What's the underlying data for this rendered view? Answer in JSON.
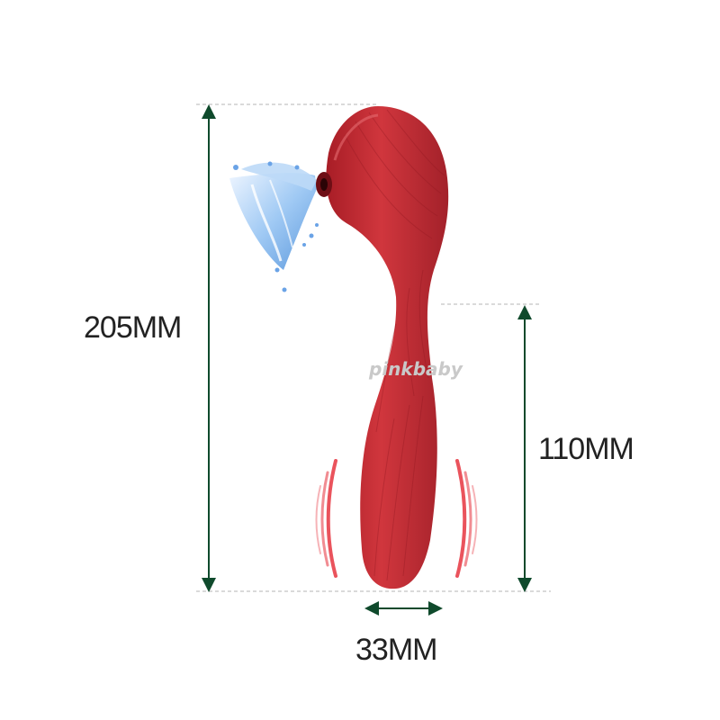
{
  "dimensions": {
    "total_length": "205MM",
    "insertable_length": "110MM",
    "diameter": "33MM"
  },
  "watermark": "pinkbaby",
  "icons": {
    "product": "red-flexible-massager",
    "suction": "water-splash-suction-icon",
    "vibration": "vibration-waves-icon"
  },
  "colors": {
    "product": "#b8242c",
    "product_highlight": "#d94a4f",
    "vibration": "#e8404a",
    "arrows": "#0f4a2c",
    "guides": "#b4b4b4",
    "text": "#222222",
    "water": "#7fb0ec"
  }
}
